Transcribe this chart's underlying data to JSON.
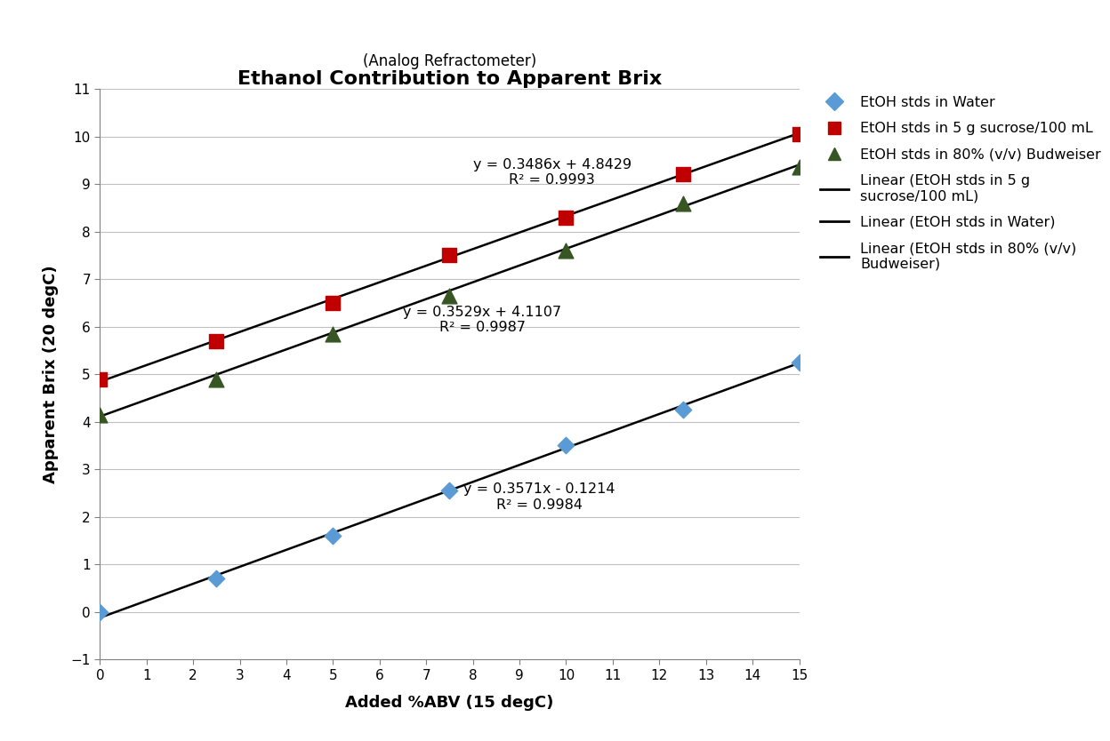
{
  "title": "Ethanol Contribution to Apparent Brix",
  "subtitle": "(Analog Refractometer)",
  "xlabel": "Added %ABV (15 degC)",
  "ylabel": "Apparent Brix (20 degC)",
  "xlim": [
    0,
    15
  ],
  "ylim": [
    -1,
    11
  ],
  "xticks": [
    0,
    1,
    2,
    3,
    4,
    5,
    6,
    7,
    8,
    9,
    10,
    11,
    12,
    13,
    14,
    15
  ],
  "yticks": [
    -1,
    0,
    1,
    2,
    3,
    4,
    5,
    6,
    7,
    8,
    9,
    10,
    11
  ],
  "water_x": [
    0,
    2.5,
    5,
    7.5,
    10,
    12.5,
    15
  ],
  "water_y": [
    0.0,
    0.7,
    1.6,
    2.55,
    3.5,
    4.25,
    5.25
  ],
  "water_color": "#5B9BD5",
  "water_marker": "D",
  "water_markersize": 7,
  "sucrose_x": [
    0,
    2.5,
    5,
    7.5,
    10,
    12.5,
    15
  ],
  "sucrose_y": [
    4.9,
    5.7,
    6.5,
    7.5,
    8.3,
    9.2,
    10.05
  ],
  "sucrose_color": "#C00000",
  "sucrose_marker": "s",
  "sucrose_markersize": 9,
  "budweiser_x": [
    0,
    2.5,
    5,
    7.5,
    10,
    12.5,
    15
  ],
  "budweiser_y": [
    4.15,
    4.9,
    5.85,
    6.65,
    7.6,
    8.6,
    9.35
  ],
  "budweiser_color": "#375623",
  "budweiser_marker": "^",
  "budweiser_markersize": 9,
  "line_color": "#000000",
  "line_width": 1.8,
  "water_slope": 0.3571,
  "water_intercept": -0.1214,
  "sucrose_slope": 0.3486,
  "sucrose_intercept": 4.8429,
  "budweiser_slope": 0.3529,
  "budweiser_intercept": 4.1107,
  "water_eq": "y = 0.3571x - 0.1214",
  "water_r2": "R² = 0.9984",
  "sucrose_eq": "y = 0.3486x + 4.8429",
  "sucrose_r2": "R² = 0.9993",
  "budweiser_eq": "y = 0.3529x + 4.1107",
  "budweiser_r2": "R² = 0.9987",
  "water_ann_x": 7.8,
  "water_ann_y": 2.72,
  "sucrose_ann_x": 8.0,
  "sucrose_ann_y": 9.55,
  "budweiser_ann_x": 6.5,
  "budweiser_ann_y": 6.45,
  "annotation_fontsize": 11.5,
  "title_fontsize": 16,
  "subtitle_fontsize": 12,
  "axis_label_fontsize": 13,
  "tick_fontsize": 11,
  "legend_fontsize": 11.5,
  "background_color": "#FFFFFF",
  "grid_color": "#C0C0C0"
}
